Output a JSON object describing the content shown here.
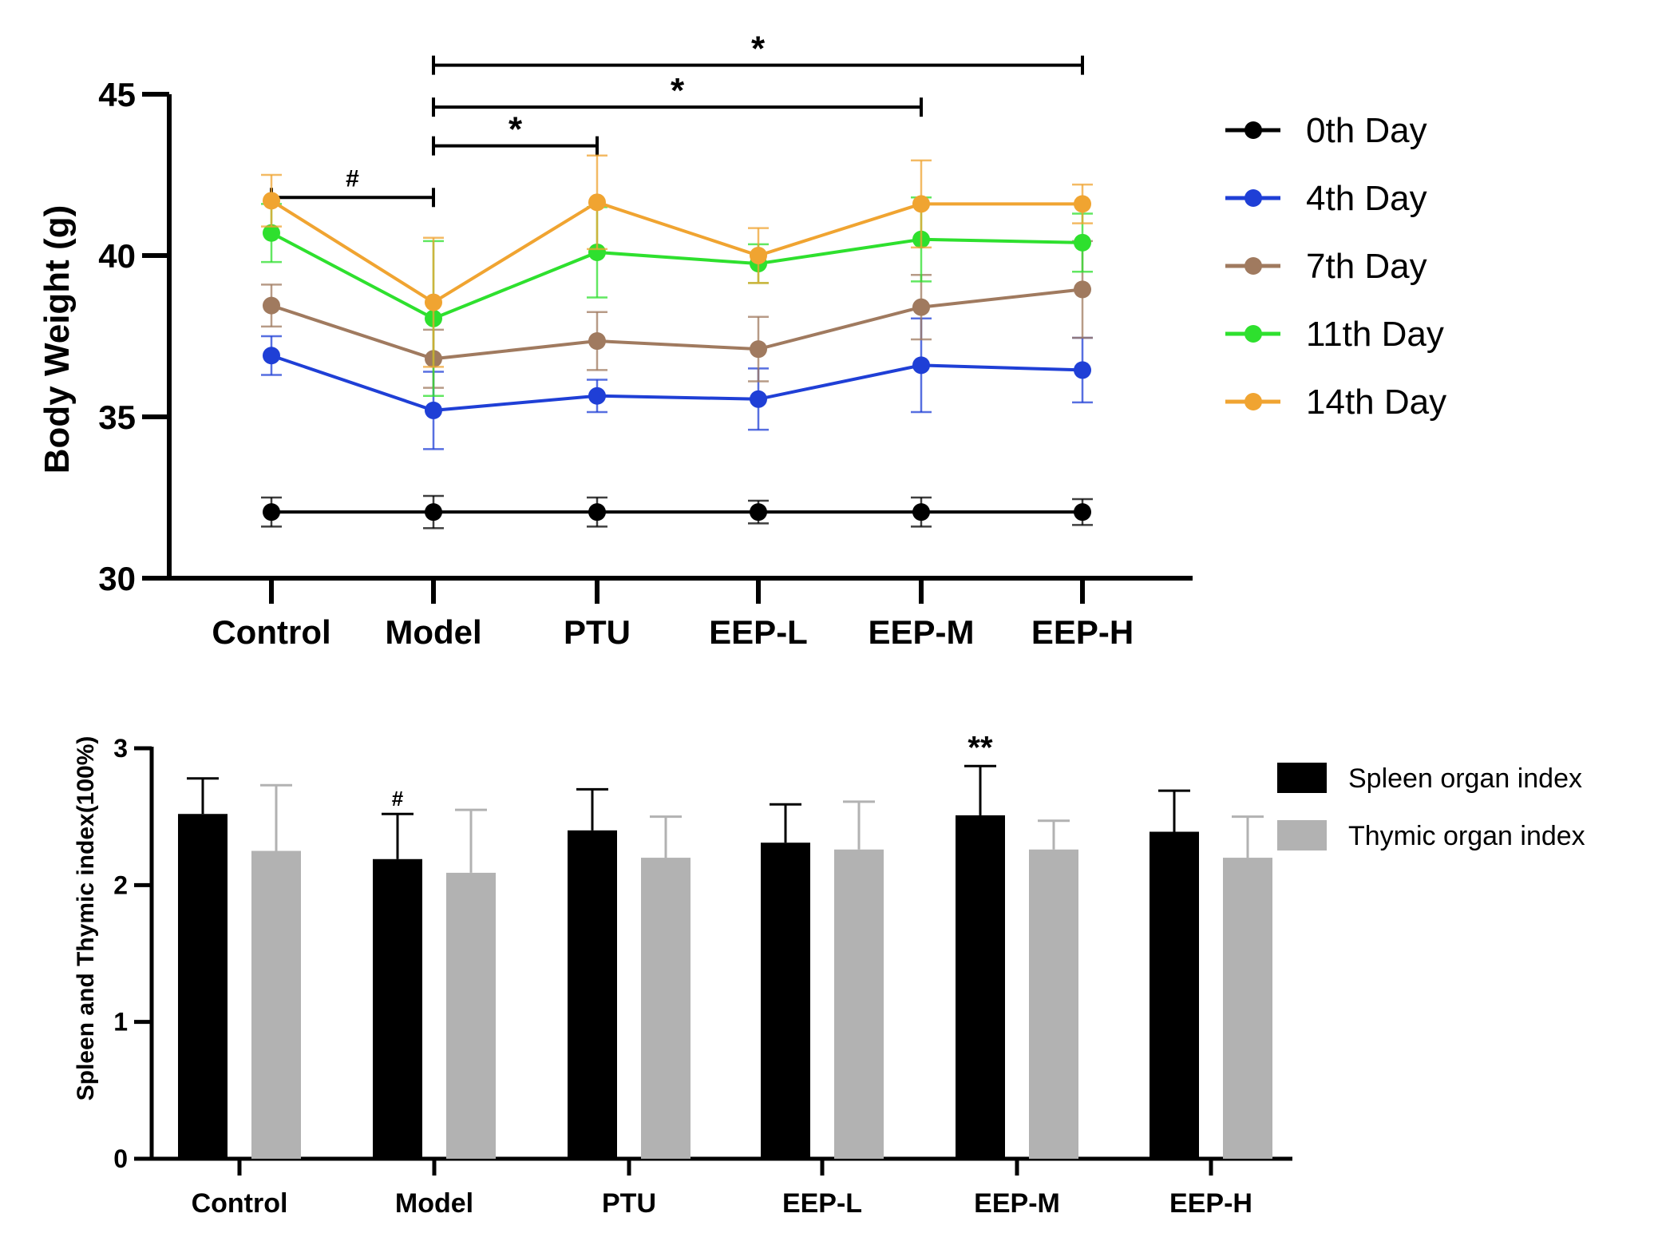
{
  "chart_data": [
    {
      "type": "line",
      "ylabel": "Body Weight (g)",
      "ylim": [
        30,
        45
      ],
      "yticks": [
        30,
        35,
        40,
        45
      ],
      "categories": [
        "Control",
        "Model",
        "PTU",
        "EEP-L",
        "EEP-M",
        "EEP-H"
      ],
      "legend_position": "right",
      "series": [
        {
          "name": "0th Day",
          "color": "#000000",
          "values": [
            32.05,
            32.05,
            32.05,
            32.05,
            32.05,
            32.05
          ],
          "errors": [
            0.45,
            0.5,
            0.45,
            0.35,
            0.45,
            0.4
          ]
        },
        {
          "name": "4th Day",
          "color": "#1f3fd6",
          "values": [
            36.9,
            35.2,
            35.65,
            35.55,
            36.6,
            36.45
          ],
          "errors": [
            0.6,
            1.2,
            0.5,
            0.95,
            1.45,
            1.0
          ]
        },
        {
          "name": "7th Day",
          "color": "#a07a5f",
          "values": [
            38.45,
            36.8,
            37.35,
            37.1,
            38.4,
            38.95
          ],
          "errors": [
            0.65,
            0.9,
            0.9,
            1.0,
            1.0,
            1.5
          ]
        },
        {
          "name": "11th Day",
          "color": "#2ee02e",
          "values": [
            40.7,
            38.05,
            40.1,
            39.75,
            40.5,
            40.4
          ],
          "errors": [
            0.9,
            2.4,
            1.4,
            0.6,
            1.3,
            0.9
          ]
        },
        {
          "name": "14th Day",
          "color": "#f0a431",
          "values": [
            41.7,
            38.55,
            41.65,
            40.0,
            41.6,
            41.6
          ],
          "errors": [
            0.8,
            2.0,
            1.45,
            0.85,
            1.35,
            0.6
          ]
        }
      ],
      "annotations": [
        {
          "label": "#",
          "from": "Control",
          "to": "Model",
          "level": 41.8
        },
        {
          "label": "*",
          "from": "Model",
          "to": "PTU",
          "level": 43.4
        },
        {
          "label": "*",
          "from": "Model",
          "to": "EEP-M",
          "level": 44.6
        },
        {
          "label": "*",
          "from": "Model",
          "to": "EEP-H",
          "level": 45.9
        }
      ]
    },
    {
      "type": "bar",
      "ylabel": "Spleen and Thymic index(100%)",
      "ylim": [
        0,
        3
      ],
      "yticks": [
        0,
        1,
        2,
        3
      ],
      "categories": [
        "Control",
        "Model",
        "PTU",
        "EEP-L",
        "EEP-M",
        "EEP-H"
      ],
      "legend_position": "right",
      "series": [
        {
          "name": "Spleen organ index",
          "color": "#000000",
          "values": [
            2.52,
            2.19,
            2.4,
            2.31,
            2.51,
            2.39
          ],
          "errors": [
            0.26,
            0.33,
            0.3,
            0.28,
            0.36,
            0.3
          ]
        },
        {
          "name": "Thymic organ index",
          "color": "#b2b2b2",
          "values": [
            2.25,
            2.09,
            2.2,
            2.26,
            2.26,
            2.2
          ],
          "errors": [
            0.48,
            0.46,
            0.3,
            0.35,
            0.21,
            0.3
          ]
        }
      ],
      "annotations": [
        {
          "label": "#",
          "category": "Model",
          "series": "Spleen organ index"
        },
        {
          "label": "**",
          "category": "EEP-M",
          "series": "Spleen organ index"
        }
      ]
    }
  ]
}
